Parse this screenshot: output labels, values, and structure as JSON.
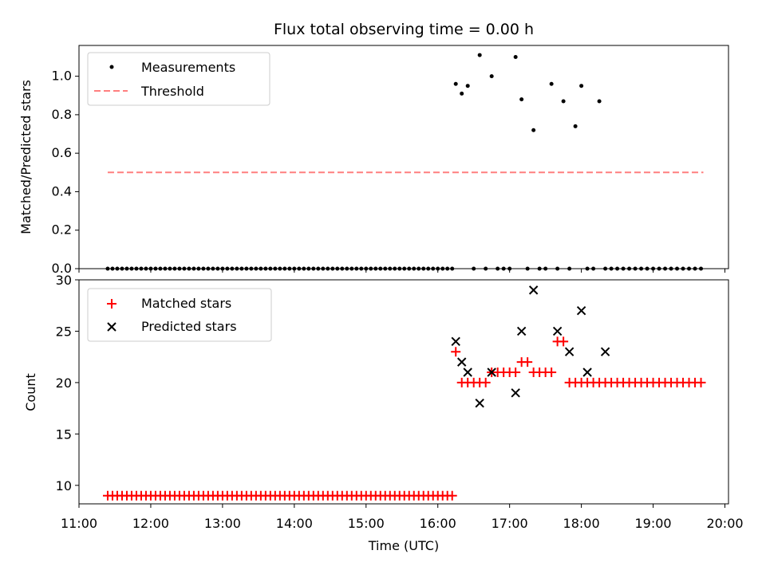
{
  "chart_data": [
    {
      "type": "scatter",
      "title": "Flux total observing time = 0.00 h",
      "xlabel": "",
      "ylabel": "Matched/Predicted stars",
      "ylim": [
        0,
        1.16
      ],
      "xlim": [
        "11:00",
        "20:03"
      ],
      "yticks": [
        "0.0",
        "0.2",
        "0.4",
        "0.6",
        "0.8",
        "1.0"
      ],
      "legend_position": "top-left",
      "legend": [
        "Measurements",
        "Threshold"
      ],
      "colors": {
        "measurements": "#000000",
        "threshold": "#ff7f7f"
      },
      "threshold": {
        "value": 0.5,
        "x_start": "11:24",
        "x_end": "19:42"
      },
      "series": [
        {
          "name": "Measurements",
          "x": [
            "11:24",
            "11:28",
            "11:32",
            "11:36",
            "11:40",
            "11:44",
            "11:48",
            "11:52",
            "11:56",
            "12:00",
            "12:04",
            "12:08",
            "12:12",
            "12:16",
            "12:20",
            "12:24",
            "12:28",
            "12:32",
            "12:36",
            "12:40",
            "12:44",
            "12:48",
            "12:52",
            "12:56",
            "13:00",
            "13:04",
            "13:08",
            "13:12",
            "13:16",
            "13:20",
            "13:24",
            "13:28",
            "13:32",
            "13:36",
            "13:40",
            "13:44",
            "13:48",
            "13:52",
            "13:56",
            "14:00",
            "14:04",
            "14:08",
            "14:12",
            "14:16",
            "14:20",
            "14:24",
            "14:28",
            "14:32",
            "14:36",
            "14:40",
            "14:44",
            "14:48",
            "14:52",
            "14:56",
            "15:00",
            "15:04",
            "15:08",
            "15:12",
            "15:16",
            "15:20",
            "15:24",
            "15:28",
            "15:32",
            "15:36",
            "15:40",
            "15:44",
            "15:48",
            "15:52",
            "15:56",
            "16:00",
            "16:04",
            "16:08",
            "16:12",
            "16:15",
            "16:20",
            "16:25",
            "16:30",
            "16:35",
            "16:40",
            "16:45",
            "16:50",
            "16:55",
            "17:00",
            "17:05",
            "17:10",
            "17:15",
            "17:20",
            "17:25",
            "17:30",
            "17:35",
            "17:40",
            "17:45",
            "17:50",
            "17:55",
            "18:00",
            "18:05",
            "18:10",
            "18:15",
            "18:20",
            "18:25",
            "18:30",
            "18:35",
            "18:40",
            "18:45",
            "18:50",
            "18:55",
            "19:00",
            "19:05",
            "19:10",
            "19:15",
            "19:20",
            "19:25",
            "19:30",
            "19:35",
            "19:40"
          ],
          "y": [
            0,
            0,
            0,
            0,
            0,
            0,
            0,
            0,
            0,
            0,
            0,
            0,
            0,
            0,
            0,
            0,
            0,
            0,
            0,
            0,
            0,
            0,
            0,
            0,
            0,
            0,
            0,
            0,
            0,
            0,
            0,
            0,
            0,
            0,
            0,
            0,
            0,
            0,
            0,
            0,
            0,
            0,
            0,
            0,
            0,
            0,
            0,
            0,
            0,
            0,
            0,
            0,
            0,
            0,
            0,
            0,
            0,
            0,
            0,
            0,
            0,
            0,
            0,
            0,
            0,
            0,
            0,
            0,
            0,
            0,
            0,
            0,
            0,
            0.96,
            0.91,
            0.95,
            0,
            1.11,
            0,
            1.0,
            0,
            0,
            0,
            1.1,
            0.88,
            0,
            0.72,
            0,
            0,
            0.96,
            0,
            0.87,
            0,
            0.74,
            0.95,
            0,
            0,
            0.87,
            0,
            0,
            0,
            0,
            0,
            0,
            0,
            0,
            0,
            0,
            0,
            0,
            0,
            0,
            0,
            0,
            0
          ]
        }
      ]
    },
    {
      "type": "scatter",
      "title": "",
      "xlabel": "Time (UTC)",
      "ylabel": "Count",
      "ylim": [
        8.2,
        30
      ],
      "xlim": [
        "11:00",
        "20:03"
      ],
      "xticks": [
        "11:00",
        "12:00",
        "13:00",
        "14:00",
        "15:00",
        "16:00",
        "17:00",
        "18:00",
        "19:00",
        "20:00"
      ],
      "yticks": [
        "10",
        "15",
        "20",
        "25",
        "30"
      ],
      "legend_position": "top-left",
      "legend": [
        "Matched stars",
        "Predicted stars"
      ],
      "colors": {
        "matched": "#ff0000",
        "predicted": "#000000"
      },
      "series": [
        {
          "name": "Matched stars",
          "x": [
            "11:24",
            "11:28",
            "11:32",
            "11:36",
            "11:40",
            "11:44",
            "11:48",
            "11:52",
            "11:56",
            "12:00",
            "12:04",
            "12:08",
            "12:12",
            "12:16",
            "12:20",
            "12:24",
            "12:28",
            "12:32",
            "12:36",
            "12:40",
            "12:44",
            "12:48",
            "12:52",
            "12:56",
            "13:00",
            "13:04",
            "13:08",
            "13:12",
            "13:16",
            "13:20",
            "13:24",
            "13:28",
            "13:32",
            "13:36",
            "13:40",
            "13:44",
            "13:48",
            "13:52",
            "13:56",
            "14:00",
            "14:04",
            "14:08",
            "14:12",
            "14:16",
            "14:20",
            "14:24",
            "14:28",
            "14:32",
            "14:36",
            "14:40",
            "14:44",
            "14:48",
            "14:52",
            "14:56",
            "15:00",
            "15:04",
            "15:08",
            "15:12",
            "15:16",
            "15:20",
            "15:24",
            "15:28",
            "15:32",
            "15:36",
            "15:40",
            "15:44",
            "15:48",
            "15:52",
            "15:56",
            "16:00",
            "16:04",
            "16:08",
            "16:12",
            "16:15",
            "16:20",
            "16:25",
            "16:30",
            "16:35",
            "16:40",
            "16:45",
            "16:50",
            "16:55",
            "17:00",
            "17:05",
            "17:10",
            "17:15",
            "17:20",
            "17:25",
            "17:30",
            "17:35",
            "17:40",
            "17:45",
            "17:50",
            "17:55",
            "18:00",
            "18:05",
            "18:10",
            "18:15",
            "18:20",
            "18:25",
            "18:30",
            "18:35",
            "18:40",
            "18:45",
            "18:50",
            "18:55",
            "19:00",
            "19:05",
            "19:10",
            "19:15",
            "19:20",
            "19:25",
            "19:30",
            "19:35",
            "19:40"
          ],
          "y": [
            9,
            9,
            9,
            9,
            9,
            9,
            9,
            9,
            9,
            9,
            9,
            9,
            9,
            9,
            9,
            9,
            9,
            9,
            9,
            9,
            9,
            9,
            9,
            9,
            9,
            9,
            9,
            9,
            9,
            9,
            9,
            9,
            9,
            9,
            9,
            9,
            9,
            9,
            9,
            9,
            9,
            9,
            9,
            9,
            9,
            9,
            9,
            9,
            9,
            9,
            9,
            9,
            9,
            9,
            9,
            9,
            9,
            9,
            9,
            9,
            9,
            9,
            9,
            9,
            9,
            9,
            9,
            9,
            9,
            9,
            9,
            9,
            9,
            23,
            20,
            20,
            20,
            20,
            20,
            21,
            21,
            21,
            21,
            21,
            22,
            22,
            21,
            21,
            21,
            21,
            24,
            24,
            20,
            20,
            20,
            20,
            20,
            20,
            20,
            20,
            20,
            20,
            20,
            20,
            20,
            20,
            20,
            20,
            20,
            20,
            20,
            20,
            20,
            20,
            20
          ]
        },
        {
          "name": "Predicted stars",
          "x": [
            "16:15",
            "16:20",
            "16:25",
            "16:35",
            "16:45",
            "17:05",
            "17:10",
            "17:20",
            "17:40",
            "17:50",
            "18:00",
            "18:05",
            "18:20"
          ],
          "y": [
            24,
            22,
            21,
            18,
            21,
            19,
            25,
            29,
            25,
            23,
            27,
            21,
            23
          ]
        }
      ]
    }
  ]
}
